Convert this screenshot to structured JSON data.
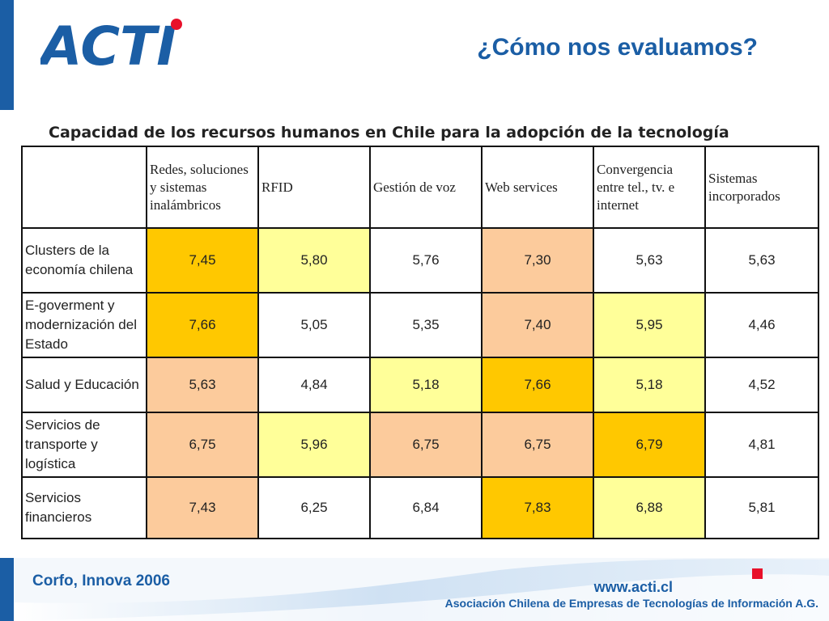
{
  "header": {
    "logo_text": "ACTI",
    "title": "¿Cómo nos evaluamos?"
  },
  "table": {
    "caption": "Capacidad de los recursos humanos en Chile para la adopción de la tecnología",
    "columns": [
      "Redes, soluciones y sistemas inalámbricos",
      "RFID",
      "Gestión de voz",
      "Web services",
      "Convergencia entre tel., tv. e internet",
      "Sistemas incorporados"
    ],
    "rows": [
      {
        "label": "Clusters de la economía chilena",
        "values": [
          "7,45",
          "5,80",
          "5,76",
          "7,30",
          "5,63",
          "5,63"
        ],
        "levels": [
          "high",
          "low",
          "none",
          "mid",
          "none",
          "none"
        ]
      },
      {
        "label": "E-goverment y modernización del Estado",
        "values": [
          "7,66",
          "5,05",
          "5,35",
          "7,40",
          "5,95",
          "4,46"
        ],
        "levels": [
          "high",
          "none",
          "none",
          "mid",
          "low",
          "none"
        ]
      },
      {
        "label": "Salud y Educación",
        "values": [
          "5,63",
          "4,84",
          "5,18",
          "7,66",
          "5,18",
          "4,52"
        ],
        "levels": [
          "mid",
          "none",
          "low",
          "high",
          "low",
          "none"
        ]
      },
      {
        "label": "Servicios de transporte y logística",
        "values": [
          "6,75",
          "5,96",
          "6,75",
          "6,75",
          "6,79",
          "4,81"
        ],
        "levels": [
          "mid",
          "low",
          "mid",
          "mid",
          "high",
          "none"
        ]
      },
      {
        "label": "Servicios financieros",
        "values": [
          "7,43",
          "6,25",
          "6,84",
          "7,83",
          "6,88",
          "5,81"
        ],
        "levels": [
          "mid",
          "none",
          "none",
          "high",
          "low",
          "none"
        ]
      }
    ]
  },
  "footer": {
    "source": "Corfo, Innova 2006",
    "url": "www.acti.cl",
    "org": "Asociación Chilena de Empresas de Tecnologías de Información A.G."
  },
  "colors": {
    "brand_blue": "#1b5ea5",
    "accent_red": "#e8102a",
    "level_high": "#ffc800",
    "level_mid": "#fccb9c",
    "level_low": "#ffff99"
  }
}
